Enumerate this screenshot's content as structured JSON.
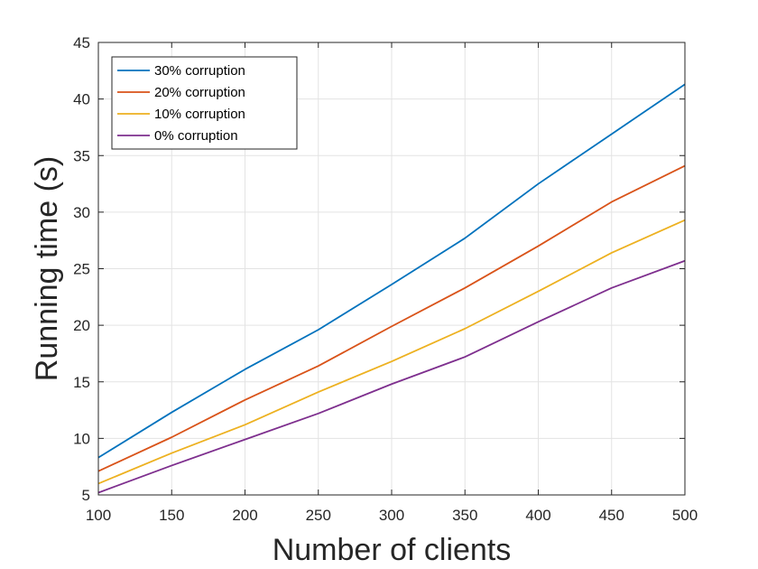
{
  "chart_data": {
    "type": "line",
    "xlabel": "Number of clients",
    "ylabel": "Running time (s)",
    "xlim": [
      100,
      500
    ],
    "ylim": [
      5,
      45
    ],
    "xticks": [
      100,
      150,
      200,
      250,
      300,
      350,
      400,
      450,
      500
    ],
    "yticks": [
      5,
      10,
      15,
      20,
      25,
      30,
      35,
      40,
      45
    ],
    "grid": true,
    "legend_position": "top-left",
    "x": [
      100,
      150,
      200,
      250,
      300,
      350,
      400,
      450,
      500
    ],
    "series": [
      {
        "name": "30% corruption",
        "color": "#0072BD",
        "values": [
          8.3,
          12.3,
          16.1,
          19.6,
          23.6,
          27.7,
          32.5,
          36.9,
          41.3
        ]
      },
      {
        "name": "20% corruption",
        "color": "#D95319",
        "values": [
          7.1,
          10.1,
          13.4,
          16.4,
          19.9,
          23.3,
          27.0,
          30.9,
          34.1
        ]
      },
      {
        "name": "10% corruption",
        "color": "#EDB120",
        "values": [
          6.0,
          8.7,
          11.2,
          14.1,
          16.8,
          19.7,
          23.0,
          26.4,
          29.3
        ]
      },
      {
        "name": "0% corruption",
        "color": "#7E2F8E",
        "values": [
          5.2,
          7.6,
          9.9,
          12.2,
          14.8,
          17.2,
          20.3,
          23.3,
          25.7
        ]
      }
    ]
  }
}
